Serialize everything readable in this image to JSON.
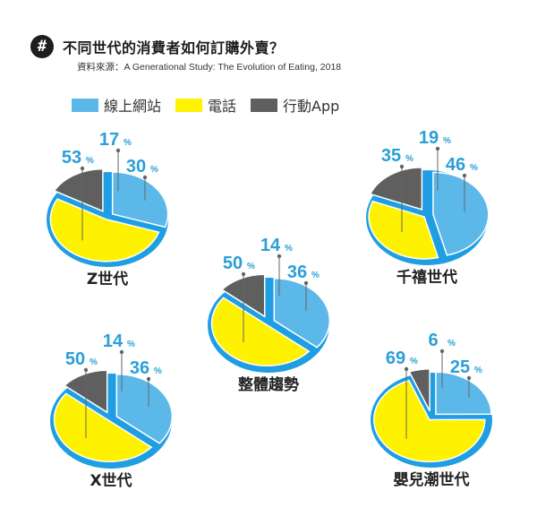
{
  "header": {
    "icon_glyph": "#",
    "title": "不同世代的消費者如何訂購外賣？",
    "source": "資料來源：A Generational Study: The Evolution of Eating, 2018"
  },
  "colors": {
    "online": "#5bb8e8",
    "phone": "#fff200",
    "app": "#5f5f5f",
    "rim": "#1f9ee3",
    "label": "#2a9fd8",
    "leader": "#666666"
  },
  "legend": [
    {
      "label": "線上網站",
      "color": "#5bb8e8"
    },
    {
      "label": "電話",
      "color": "#fff200"
    },
    {
      "label": "行動App",
      "color": "#5f5f5f"
    }
  ],
  "chart_data": [
    {
      "type": "pie",
      "name": "Z世代",
      "labels": [
        "線上網站",
        "電話",
        "行動App"
      ],
      "values": [
        30,
        53,
        17
      ],
      "unit": "%"
    },
    {
      "type": "pie",
      "name": "千禧世代",
      "labels": [
        "線上網站",
        "電話",
        "行動App"
      ],
      "values": [
        46,
        35,
        19
      ],
      "unit": "%"
    },
    {
      "type": "pie",
      "name": "整體趨勢",
      "labels": [
        "線上網站",
        "電話",
        "行動App"
      ],
      "values": [
        36,
        50,
        14
      ],
      "unit": "%"
    },
    {
      "type": "pie",
      "name": "X世代",
      "labels": [
        "線上網站",
        "電話",
        "行動App"
      ],
      "values": [
        36,
        50,
        14
      ],
      "unit": "%"
    },
    {
      "type": "pie",
      "name": "嬰兒潮世代",
      "labels": [
        "線上網站",
        "電話",
        "行動App"
      ],
      "values": [
        25,
        69,
        6
      ],
      "unit": "%"
    }
  ]
}
